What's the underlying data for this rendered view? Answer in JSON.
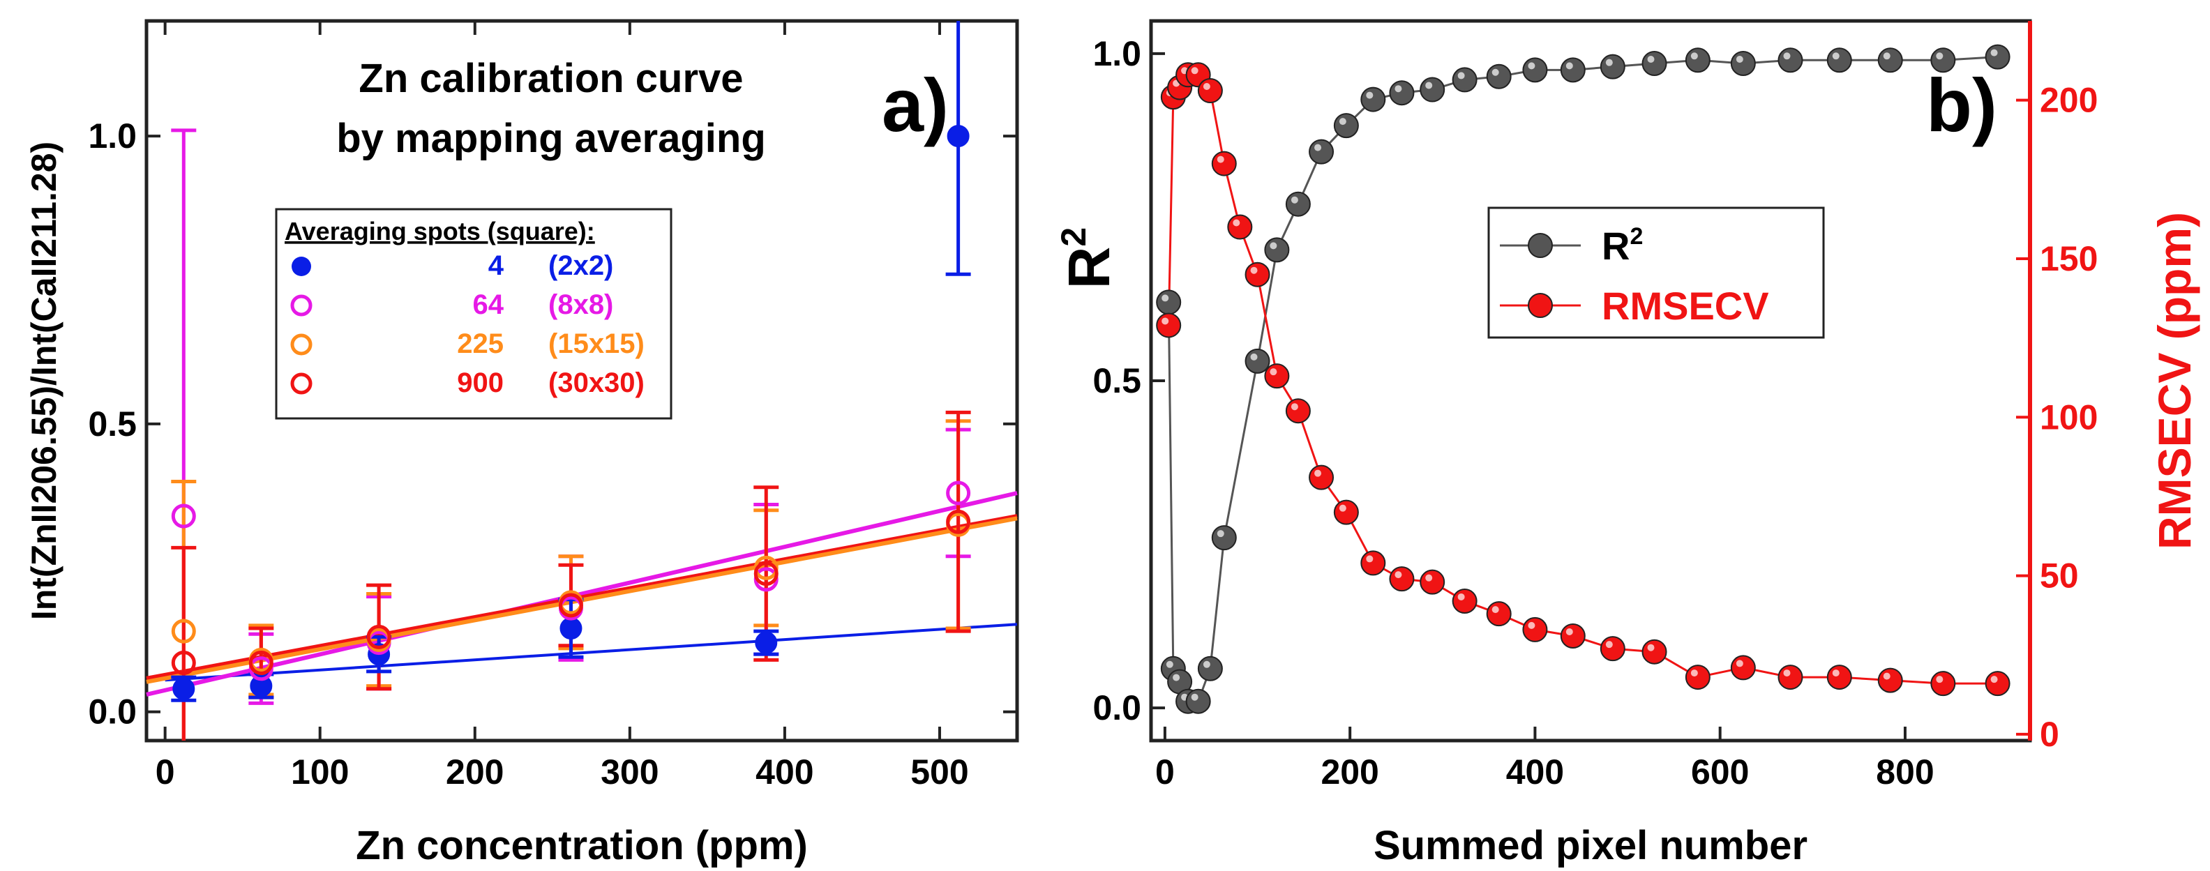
{
  "chart_data": [
    {
      "type": "scatter",
      "panel_label": "a)",
      "title": "Zn calibration curve",
      "subtitle": "by mapping averaging",
      "xlabel": "Zn concentration (ppm)",
      "ylabel": "Int(ZnII206.55)/Int(CaII211.28)",
      "xlim": [
        -12,
        550
      ],
      "ylim": [
        -0.05,
        1.2
      ],
      "xticks": [
        0,
        100,
        200,
        300,
        400,
        500
      ],
      "yticks": [
        0.0,
        0.5,
        1.0
      ],
      "ytick_labels": [
        "0.0",
        "0.5",
        "1.0"
      ],
      "legend_title": "Averaging spots (square):",
      "series": [
        {
          "name": "4",
          "size": "(2x2)",
          "color": "#0a1ee6",
          "marker": "filled",
          "x": [
            12,
            62,
            138,
            262,
            388,
            512
          ],
          "y": [
            0.04,
            0.045,
            0.1,
            0.145,
            0.12,
            1.0
          ],
          "err": [
            0.02,
            0.02,
            0.03,
            0.05,
            0.02,
            0.24
          ],
          "fit": {
            "x": [
              0,
              550
            ],
            "y": [
              0.055,
              0.152
            ]
          }
        },
        {
          "name": "64",
          "size": "(8x8)",
          "color": "#e619e6",
          "marker": "open",
          "x": [
            12,
            62,
            138,
            262,
            388,
            512
          ],
          "y": [
            0.34,
            0.075,
            0.12,
            0.18,
            0.23,
            0.38
          ],
          "err": [
            0.67,
            0.06,
            0.08,
            0.09,
            0.13,
            0.11
          ],
          "fit": {
            "x": [
              -12,
              550
            ],
            "y": [
              0.03,
              0.38
            ]
          }
        },
        {
          "name": "225",
          "size": "(15x15)",
          "color": "#ff8c1a",
          "marker": "open",
          "x": [
            12,
            62,
            138,
            262,
            388,
            512
          ],
          "y": [
            0.14,
            0.09,
            0.125,
            0.19,
            0.25,
            0.325
          ],
          "err": [
            0.26,
            0.06,
            0.08,
            0.08,
            0.1,
            0.18
          ],
          "fit": {
            "x": [
              -12,
              550
            ],
            "y": [
              0.052,
              0.336
            ]
          }
        },
        {
          "name": "900",
          "size": "(30x30)",
          "color": "#f01414",
          "marker": "open",
          "x": [
            12,
            62,
            138,
            262,
            388,
            512
          ],
          "y": [
            0.085,
            0.085,
            0.13,
            0.185,
            0.24,
            0.33
          ],
          "err": [
            0.2,
            0.06,
            0.09,
            0.07,
            0.15,
            0.19
          ],
          "fit": {
            "x": [
              -12,
              550
            ],
            "y": [
              0.058,
              0.34
            ]
          }
        }
      ]
    },
    {
      "type": "line",
      "panel_label": "b)",
      "xlabel": "Summed pixel number",
      "ylabel_left": "R²",
      "ylabel_right": "RMSECV (ppm)",
      "xlim": [
        -15,
        935
      ],
      "ylim_left": [
        -0.05,
        1.05
      ],
      "ylim_right": [
        -2,
        225
      ],
      "xticks": [
        0,
        200,
        400,
        600,
        800
      ],
      "yticks_left": [
        0.0,
        0.5,
        1.0
      ],
      "ytick_labels_left": [
        "0.0",
        "0.5",
        "1.0"
      ],
      "yticks_right": [
        0,
        50,
        100,
        150,
        200
      ],
      "series": [
        {
          "name": "R",
          "sup": "2",
          "color": "#555555",
          "axis": "left",
          "x": [
            4,
            9,
            16,
            25,
            36,
            49,
            64,
            100,
            121,
            144,
            169,
            196,
            225,
            256,
            289,
            324,
            361,
            400,
            441,
            484,
            529,
            576,
            625,
            676,
            729,
            784,
            841,
            900
          ],
          "y": [
            0.62,
            0.06,
            0.04,
            0.01,
            0.01,
            0.06,
            0.26,
            0.53,
            0.7,
            0.77,
            0.85,
            0.89,
            0.93,
            0.94,
            0.945,
            0.96,
            0.965,
            0.975,
            0.975,
            0.98,
            0.985,
            0.99,
            0.985,
            0.99,
            0.99,
            0.99,
            0.99,
            0.995
          ]
        },
        {
          "name": "RMSECV",
          "color": "#f01414",
          "axis": "right",
          "x": [
            4,
            9,
            16,
            25,
            36,
            49,
            64,
            81,
            100,
            121,
            144,
            169,
            196,
            225,
            256,
            289,
            324,
            361,
            400,
            441,
            484,
            529,
            576,
            625,
            676,
            729,
            784,
            841,
            900
          ],
          "y": [
            129,
            201,
            204,
            208,
            208,
            203,
            180,
            160,
            145,
            113,
            102,
            81,
            70,
            54,
            49,
            48,
            42,
            38,
            33,
            31,
            27,
            26,
            18,
            21,
            18,
            18,
            17,
            16,
            16
          ]
        }
      ]
    }
  ]
}
